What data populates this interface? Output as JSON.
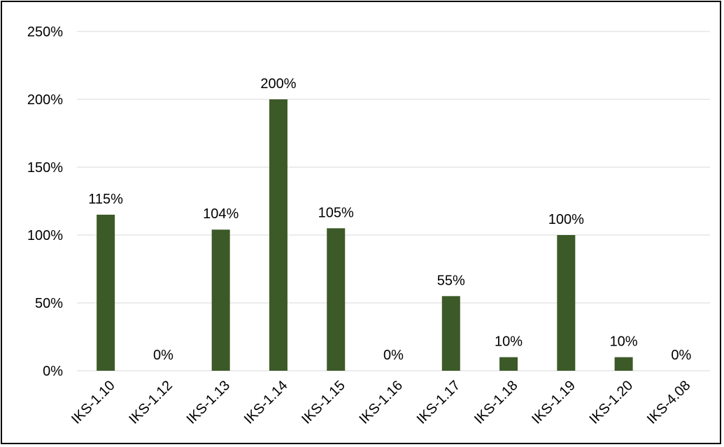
{
  "chart_data": {
    "type": "bar",
    "categories": [
      "IKS-1.10",
      "IKS-1.12",
      "IKS-1.13",
      "IKS-1.14",
      "IKS-1.15",
      "IKS-1.16",
      "IKS-1.17",
      "IKS-1.18",
      "IKS-1.19",
      "IKS-1.20",
      "IKS-4.08"
    ],
    "values": [
      115,
      0,
      104,
      200,
      105,
      0,
      55,
      10,
      100,
      10,
      0
    ],
    "data_labels": [
      "115%",
      "0%",
      "104%",
      "200%",
      "105%",
      "0%",
      "55%",
      "10%",
      "100%",
      "10%",
      "0%"
    ],
    "y_ticks": [
      0,
      50,
      100,
      150,
      200,
      250
    ],
    "y_tick_labels": [
      "0%",
      "50%",
      "100%",
      "150%",
      "200%",
      "250%"
    ],
    "ylim": [
      0,
      250
    ],
    "title": "",
    "xlabel": "",
    "ylabel": "",
    "grid": true,
    "legend": "none",
    "bar_color": "#3c5a28"
  }
}
